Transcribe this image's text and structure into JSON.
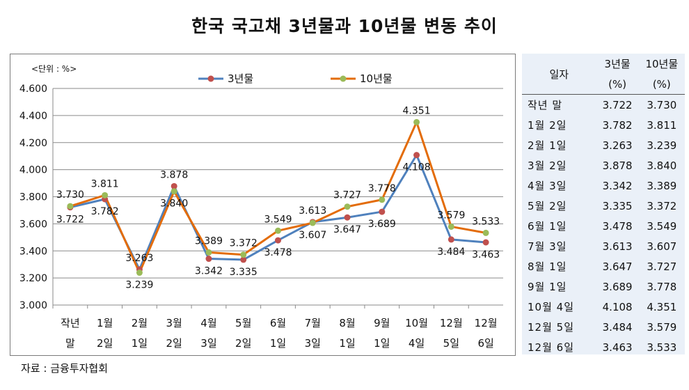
{
  "title": "한국 국고채 3년물과 10년물 변동 추이",
  "source": "자료 : 금융투자협회",
  "table": {
    "headers": {
      "date": "일자",
      "y3": "3년물",
      "y3_unit": "(%)",
      "y10": "10년물",
      "y10_unit": "(%)"
    },
    "rows": [
      {
        "date": "작년 말",
        "y3": "3.722",
        "y10": "3.730"
      },
      {
        "date": "1월 2일",
        "y3": "3.782",
        "y10": "3.811"
      },
      {
        "date": "2월 1일",
        "y3": "3.263",
        "y10": "3.239"
      },
      {
        "date": "3월 2일",
        "y3": "3.878",
        "y10": "3.840"
      },
      {
        "date": "4월 3일",
        "y3": "3.342",
        "y10": "3.389"
      },
      {
        "date": "5월 2일",
        "y3": "3.335",
        "y10": "3.372"
      },
      {
        "date": "6월 1일",
        "y3": "3.478",
        "y10": "3.549"
      },
      {
        "date": "7월 3일",
        "y3": "3.613",
        "y10": "3.607"
      },
      {
        "date": "8월 1일",
        "y3": "3.647",
        "y10": "3.727"
      },
      {
        "date": "9월 1일",
        "y3": "3.689",
        "y10": "3.778"
      },
      {
        "date": "10월 4일",
        "y3": "4.108",
        "y10": "4.351"
      },
      {
        "date": "12월 5일",
        "y3": "3.484",
        "y10": "3.579"
      },
      {
        "date": "12월 6일",
        "y3": "3.463",
        "y10": "3.533"
      }
    ]
  },
  "chart_data": {
    "type": "line",
    "unit_label": "<단위 : %>",
    "categories": [
      [
        "작년",
        "말"
      ],
      [
        "1월",
        "2일"
      ],
      [
        "2월",
        "1일"
      ],
      [
        "3월",
        "2일"
      ],
      [
        "4월",
        "3일"
      ],
      [
        "5월",
        "2일"
      ],
      [
        "6월",
        "1일"
      ],
      [
        "7월",
        "3일"
      ],
      [
        "8월",
        "1일"
      ],
      [
        "9월",
        "1일"
      ],
      [
        "10월",
        "4일"
      ],
      [
        "12월",
        "5일"
      ],
      [
        "12월",
        "6일"
      ]
    ],
    "series": [
      {
        "name": "3년물",
        "line_color": "#4f81bd",
        "marker_color": "#c0504d",
        "values": [
          3.722,
          3.782,
          3.263,
          3.878,
          3.342,
          3.335,
          3.478,
          3.613,
          3.647,
          3.689,
          4.108,
          3.484,
          3.463
        ]
      },
      {
        "name": "10년물",
        "line_color": "#e36c09",
        "marker_color": "#9bbb59",
        "values": [
          3.73,
          3.811,
          3.239,
          3.84,
          3.389,
          3.372,
          3.549,
          3.607,
          3.727,
          3.778,
          4.351,
          3.579,
          3.533
        ]
      }
    ],
    "value_labels": {
      "3년물": [
        "3.722",
        "3.782",
        "3.263",
        "3.878",
        "3.342",
        "3.335",
        "3.478",
        "3.613",
        "3.647",
        "3.689",
        "4.108",
        "3.484",
        "3.463"
      ],
      "10년물": [
        "3.730",
        "3.811",
        "3.239",
        "3.840",
        "3.389",
        "3.372",
        "3.549",
        "3.607",
        "3.727",
        "3.778",
        "4.351",
        "3.579",
        "3.533"
      ]
    },
    "ylim": [
      3.0,
      4.6
    ],
    "yticks": [
      "3.000",
      "3.200",
      "3.400",
      "3.600",
      "3.800",
      "4.000",
      "4.200",
      "4.400",
      "4.600"
    ],
    "grid": true,
    "legend_position": "top-center"
  }
}
